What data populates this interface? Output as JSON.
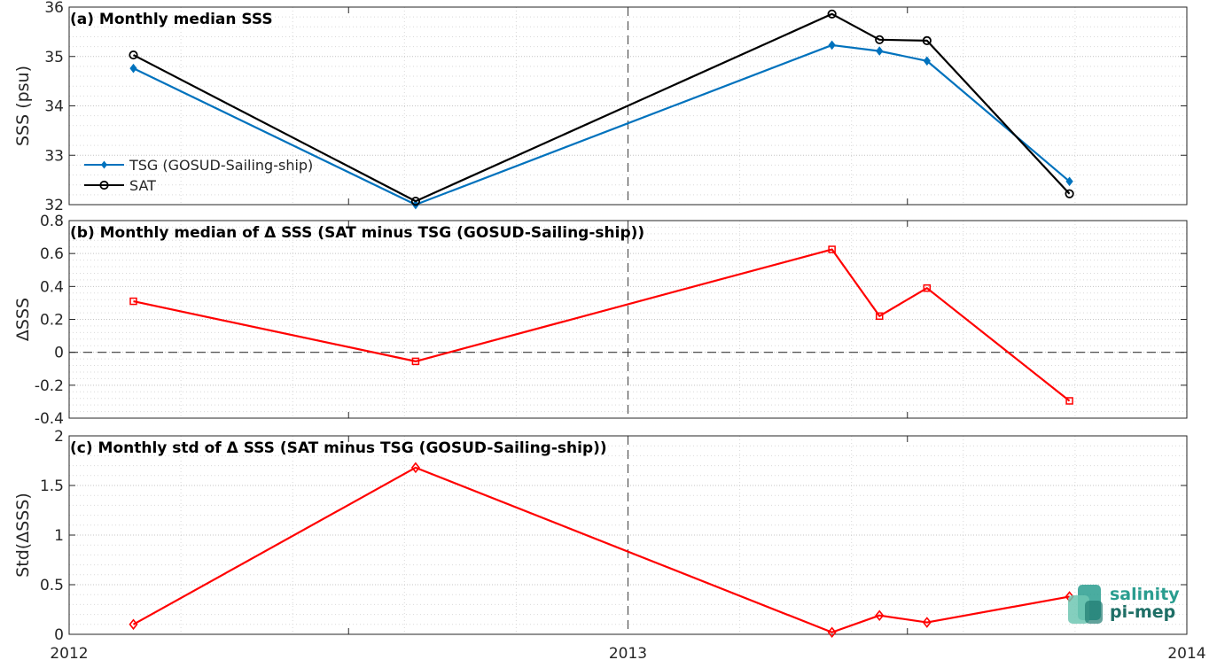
{
  "x_ticks": [
    "2012",
    "2013",
    "2014"
  ],
  "x_range": [
    2012,
    2014
  ],
  "logo": {
    "line1": "salinity",
    "line2": "pi-mep",
    "color": "#2a9d8f"
  },
  "chart_data": [
    {
      "type": "line",
      "title": "(a) Monthly median SSS",
      "ylabel": "SSS (psu)",
      "ylim": [
        32,
        36
      ],
      "yticks": [
        "32",
        "33",
        "34",
        "35",
        "36"
      ],
      "grid": true,
      "legend_placement": "bottom-left",
      "series": [
        {
          "name": "TSG (GOSUD-Sailing-ship)",
          "color": "#0072BD",
          "marker": "diamond-filled",
          "points": [
            [
              2012.115,
              34.76
            ],
            [
              2012.62,
              32.0
            ],
            [
              2013.365,
              35.23
            ],
            [
              2013.45,
              35.11
            ],
            [
              2013.535,
              34.91
            ],
            [
              2013.79,
              32.47
            ]
          ]
        },
        {
          "name": "SAT",
          "color": "#000000",
          "marker": "circle-open",
          "points": [
            [
              2012.115,
              35.03
            ],
            [
              2012.62,
              32.07
            ],
            [
              2013.365,
              35.86
            ],
            [
              2013.45,
              35.34
            ],
            [
              2013.535,
              35.32
            ],
            [
              2013.79,
              32.22
            ]
          ]
        }
      ]
    },
    {
      "type": "line",
      "title": "(b) Monthly median of Δ SSS (SAT minus TSG (GOSUD-Sailing-ship))",
      "ylabel": "ΔSSS",
      "ylim": [
        -0.4,
        0.8
      ],
      "yticks": [
        "-0.4",
        "-0.2",
        "0",
        "0.2",
        "0.4",
        "0.6",
        "0.8"
      ],
      "grid": true,
      "zero_line": true,
      "series": [
        {
          "color": "#FF0000",
          "marker": "square-open",
          "points": [
            [
              2012.115,
              0.31
            ],
            [
              2012.62,
              -0.055
            ],
            [
              2013.365,
              0.625
            ],
            [
              2013.45,
              0.22
            ],
            [
              2013.535,
              0.39
            ],
            [
              2013.79,
              -0.295
            ]
          ]
        }
      ]
    },
    {
      "type": "line",
      "title": "(c) Monthly std of Δ SSS (SAT minus TSG (GOSUD-Sailing-ship))",
      "ylabel": "Std(ΔSSS)",
      "ylim": [
        0,
        2
      ],
      "yticks": [
        "0",
        "0.5",
        "1",
        "1.5",
        "2"
      ],
      "grid": true,
      "series": [
        {
          "color": "#FF0000",
          "marker": "diamond-open",
          "points": [
            [
              2012.115,
              0.1
            ],
            [
              2012.62,
              1.68
            ],
            [
              2013.365,
              0.02
            ],
            [
              2013.45,
              0.19
            ],
            [
              2013.535,
              0.12
            ],
            [
              2013.79,
              0.38
            ]
          ]
        }
      ]
    }
  ]
}
